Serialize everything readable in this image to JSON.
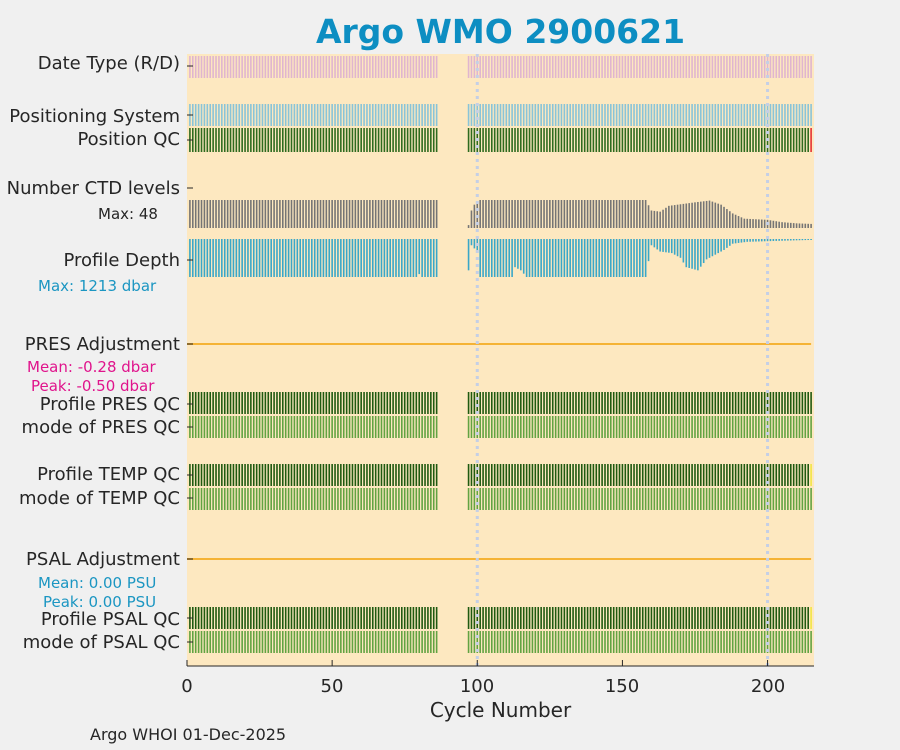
{
  "colors": {
    "title": "#0d8ec2",
    "plot_bg": "#fde8c0",
    "date_type": "#e0b5cf",
    "positioning": "#89c4d8",
    "qc_good": "#2e6b1f",
    "qc_good_light": "#62a342",
    "qc_dark": "#1f5a10",
    "ctd_levels": "#757575",
    "profile_depth": "#3aa7c8",
    "adjustment_line": "#f5b335",
    "pres_stats": "#e0148c",
    "psal_stats": "#1b96c2",
    "flag_red": "#e53232",
    "flag_yellow": "#f2e544",
    "ref_line": "#c4cfe6"
  },
  "chart_data": {
    "type": "bar",
    "title": "Argo WMO 2900621",
    "xlabel": "Cycle Number",
    "xlim": [
      0,
      216
    ],
    "xticks": [
      "0",
      "50",
      "100",
      "150",
      "200"
    ],
    "reference_lines_at_cycle": [
      100,
      200
    ],
    "missing_cycles": [
      87,
      88,
      89,
      90,
      91,
      92,
      93,
      94,
      95,
      96
    ],
    "last_cycle": 215,
    "rows": [
      {
        "label": "Date Type (R/D)",
        "style": "stripes",
        "color_key": "date_type"
      },
      {
        "label": "Positioning System",
        "style": "stripes",
        "color_key": "positioning"
      },
      {
        "label": "Position QC",
        "style": "stripes",
        "color_key": "qc_good",
        "final_flag": "flag_red"
      },
      {
        "label": "Number CTD levels",
        "style": "bars_up",
        "color_key": "ctd_levels",
        "annotation": "Max: 48"
      },
      {
        "label": "Profile Depth",
        "style": "bars_down",
        "color_key": "profile_depth",
        "annotation": "Max: 1213 dbar"
      },
      {
        "label": "PRES Adjustment",
        "style": "line",
        "color_key": "adjustment_line",
        "stats": [
          "Mean: -0.28 dbar",
          "Peak: -0.50 dbar"
        ]
      },
      {
        "label": "Profile PRES QC",
        "style": "stripes",
        "color_key": "qc_dark"
      },
      {
        "label": "mode of PRES QC",
        "style": "stripes",
        "color_key": "qc_good_light"
      },
      {
        "label": "Profile TEMP QC",
        "style": "stripes",
        "color_key": "qc_dark",
        "final_flag": "flag_yellow"
      },
      {
        "label": "mode of TEMP QC",
        "style": "stripes",
        "color_key": "qc_good_light"
      },
      {
        "label": "PSAL Adjustment",
        "style": "line",
        "color_key": "adjustment_line",
        "stats": [
          "Mean: 0.00 PSU",
          "Peak: 0.00 PSU"
        ]
      },
      {
        "label": "Profile PSAL QC",
        "style": "stripes",
        "color_key": "qc_dark",
        "final_flag": "flag_yellow"
      },
      {
        "label": "mode of PSAL QC",
        "style": "stripes",
        "color_key": "qc_good_light"
      }
    ],
    "ctd_levels": {
      "max": 48,
      "before_gap": 48,
      "after_gap": [
        {
          "cycle": 97,
          "value": 5
        },
        {
          "cycle": 98,
          "value": 30
        },
        {
          "cycle": 99,
          "value": 40
        },
        {
          "cycle": 101,
          "value": 48
        },
        {
          "cycle": 158,
          "value": 48
        },
        {
          "cycle": 160,
          "value": 30
        },
        {
          "cycle": 163,
          "value": 28
        },
        {
          "cycle": 166,
          "value": 38
        },
        {
          "cycle": 175,
          "value": 44
        },
        {
          "cycle": 180,
          "value": 47
        },
        {
          "cycle": 184,
          "value": 40
        },
        {
          "cycle": 188,
          "value": 25
        },
        {
          "cycle": 192,
          "value": 16
        },
        {
          "cycle": 196,
          "value": 15
        },
        {
          "cycle": 200,
          "value": 14
        },
        {
          "cycle": 205,
          "value": 10
        },
        {
          "cycle": 210,
          "value": 8
        },
        {
          "cycle": 215,
          "value": 7
        }
      ]
    },
    "profile_depth": {
      "max": 1213,
      "unit": "dbar",
      "before_gap": 1213,
      "dips_before_gap": [
        {
          "cycle": 80,
          "value": 1120
        }
      ],
      "after_gap": [
        {
          "cycle": 97,
          "value": 1000
        },
        {
          "cycle": 98,
          "value": 200
        },
        {
          "cycle": 100,
          "value": 400
        },
        {
          "cycle": 101,
          "value": 1213
        },
        {
          "cycle": 112,
          "value": 1213
        },
        {
          "cycle": 113,
          "value": 900
        },
        {
          "cycle": 115,
          "value": 1000
        },
        {
          "cycle": 117,
          "value": 1213
        },
        {
          "cycle": 158,
          "value": 1213
        },
        {
          "cycle": 160,
          "value": 200
        },
        {
          "cycle": 163,
          "value": 400
        },
        {
          "cycle": 167,
          "value": 450
        },
        {
          "cycle": 170,
          "value": 600
        },
        {
          "cycle": 172,
          "value": 900
        },
        {
          "cycle": 176,
          "value": 1000
        },
        {
          "cycle": 179,
          "value": 650
        },
        {
          "cycle": 182,
          "value": 500
        },
        {
          "cycle": 185,
          "value": 350
        },
        {
          "cycle": 188,
          "value": 150
        },
        {
          "cycle": 193,
          "value": 90
        },
        {
          "cycle": 200,
          "value": 70
        },
        {
          "cycle": 207,
          "value": 50
        },
        {
          "cycle": 215,
          "value": 30
        }
      ]
    }
  },
  "annotations": {
    "ctd_max": "Max: 48",
    "depth_max": "Max: 1213 dbar",
    "pres_mean": "Mean: -0.28 dbar",
    "pres_peak": "Peak: -0.50 dbar",
    "psal_mean": "Mean: 0.00 PSU",
    "psal_peak": "Peak: 0.00 PSU"
  },
  "footer": "Argo WHOI 01-Dec-2025"
}
